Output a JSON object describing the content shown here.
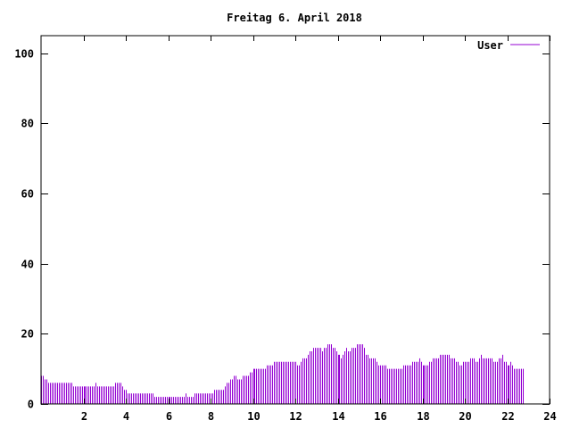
{
  "chart_data": {
    "type": "bar",
    "title": "Freitag 6. April 2018",
    "xlabel": "",
    "ylabel": "",
    "xlim": [
      0,
      24
    ],
    "ylim": [
      0,
      105
    ],
    "xticks": [
      2,
      4,
      6,
      8,
      10,
      12,
      14,
      16,
      18,
      20,
      22,
      24
    ],
    "yticks": [
      0,
      20,
      40,
      60,
      80,
      100
    ],
    "grid": false,
    "legend_position": "top-right",
    "bar_color": "#9400d3",
    "series": [
      {
        "name": "User",
        "interval_minutes": 5,
        "values": [
          8,
          8,
          7,
          7,
          6,
          6,
          6,
          6,
          6,
          6,
          6,
          6,
          6,
          6,
          6,
          6,
          6,
          6,
          5,
          5,
          5,
          5,
          5,
          5,
          5,
          5,
          5,
          5,
          5,
          5,
          5,
          6,
          5,
          5,
          5,
          5,
          5,
          5,
          5,
          5,
          5,
          5,
          6,
          6,
          6,
          6,
          5,
          4,
          4,
          3,
          3,
          3,
          3,
          3,
          3,
          3,
          3,
          3,
          3,
          3,
          3,
          3,
          3,
          3,
          2,
          2,
          2,
          2,
          2,
          2,
          2,
          2,
          2,
          2,
          2,
          2,
          2,
          2,
          2,
          2,
          2,
          2,
          3,
          2,
          2,
          2,
          2,
          3,
          3,
          3,
          3,
          3,
          3,
          3,
          3,
          3,
          3,
          3,
          4,
          4,
          4,
          4,
          4,
          4,
          5,
          6,
          6,
          7,
          7,
          8,
          8,
          7,
          7,
          7,
          8,
          8,
          8,
          8,
          9,
          9,
          10,
          10,
          10,
          10,
          10,
          10,
          10,
          10,
          11,
          11,
          11,
          11,
          12,
          12,
          12,
          12,
          12,
          12,
          12,
          12,
          12,
          12,
          12,
          12,
          12,
          11,
          11,
          12,
          13,
          13,
          13,
          14,
          15,
          15,
          16,
          16,
          16,
          16,
          16,
          15,
          16,
          16,
          17,
          17,
          17,
          16,
          16,
          15,
          14,
          14,
          13,
          14,
          15,
          16,
          15,
          15,
          16,
          16,
          16,
          17,
          17,
          17,
          17,
          16,
          14,
          14,
          13,
          13,
          13,
          13,
          12,
          11,
          11,
          11,
          11,
          11,
          10,
          10,
          10,
          10,
          10,
          10,
          10,
          10,
          10,
          11,
          11,
          11,
          11,
          11,
          12,
          12,
          12,
          12,
          13,
          12,
          11,
          11,
          11,
          11,
          12,
          12,
          13,
          13,
          13,
          13,
          14,
          14,
          14,
          14,
          14,
          14,
          13,
          13,
          13,
          12,
          12,
          11,
          11,
          12,
          12,
          12,
          12,
          13,
          13,
          13,
          12,
          12,
          13,
          14,
          13,
          13,
          13,
          13,
          13,
          13,
          12,
          12,
          12,
          13,
          13,
          14,
          12,
          12,
          11,
          11,
          12,
          11,
          10,
          10,
          10,
          10,
          10,
          10
        ]
      }
    ]
  }
}
